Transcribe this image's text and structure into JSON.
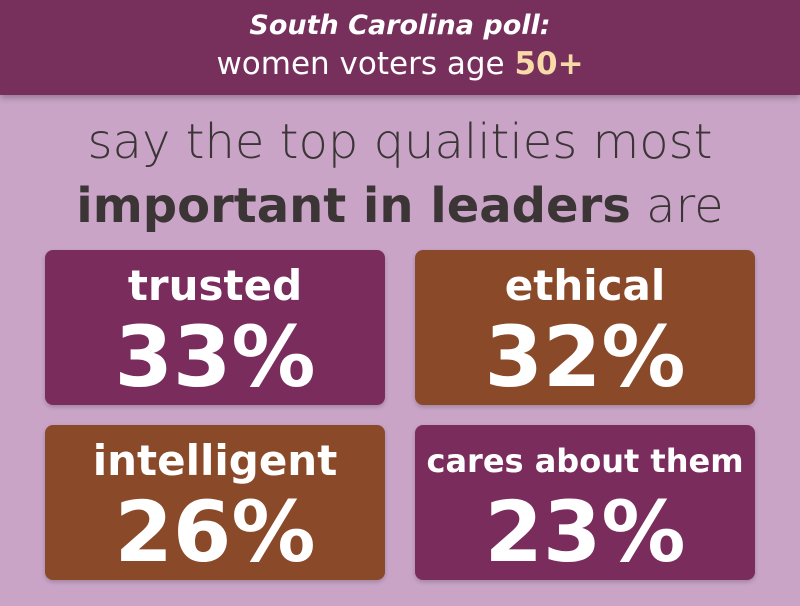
{
  "header": {
    "line1": "South Carolina poll:",
    "line2": "women voters age",
    "highlight": "50+"
  },
  "headline": {
    "line1": "say the top qualities most",
    "bold": "important in leaders",
    "end": "are"
  },
  "tiles": [
    {
      "label": "trusted",
      "value": "33%"
    },
    {
      "label": "ethical",
      "value": "32%"
    },
    {
      "label": "intelligent",
      "value": "26%"
    },
    {
      "label": "cares about them",
      "value": "23%"
    }
  ]
}
